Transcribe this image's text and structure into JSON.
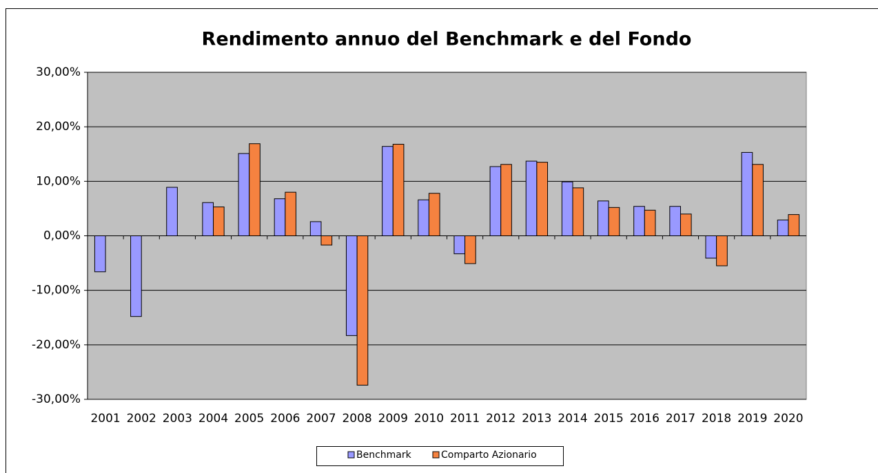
{
  "chart_data": {
    "type": "bar",
    "title": "Rendimento annuo del Benchmark e del Fondo",
    "categories": [
      "2001",
      "2002",
      "2003",
      "2004",
      "2005",
      "2006",
      "2007",
      "2008",
      "2009",
      "2010",
      "2011",
      "2012",
      "2013",
      "2014",
      "2015",
      "2016",
      "2017",
      "2018",
      "2019",
      "2020"
    ],
    "series": [
      {
        "name": "Benchmark",
        "color": "#9999ff",
        "values": [
          -6.6,
          -14.8,
          8.9,
          6.1,
          15.1,
          6.8,
          2.6,
          -18.3,
          16.4,
          6.6,
          -3.3,
          12.7,
          13.7,
          9.9,
          6.4,
          5.4,
          5.4,
          -4.1,
          15.3,
          2.9
        ]
      },
      {
        "name": "Comparto Azionario",
        "color": "#f58240",
        "values": [
          null,
          null,
          null,
          5.3,
          16.9,
          8.0,
          -1.7,
          -27.4,
          16.8,
          7.8,
          -5.1,
          13.1,
          13.5,
          8.8,
          5.2,
          4.7,
          4.0,
          -5.5,
          13.1,
          3.9
        ]
      }
    ],
    "ylim": [
      -30,
      30
    ],
    "yticks": [
      {
        "value": -30,
        "label": "-30,00%"
      },
      {
        "value": -20,
        "label": "-20,00%"
      },
      {
        "value": -10,
        "label": "-10,00%"
      },
      {
        "value": 0,
        "label": "0,00%"
      },
      {
        "value": 10,
        "label": "10,00%"
      },
      {
        "value": 20,
        "label": "20,00%"
      },
      {
        "value": 30,
        "label": "30,00%"
      }
    ],
    "grid": true,
    "legend": "bottom"
  }
}
